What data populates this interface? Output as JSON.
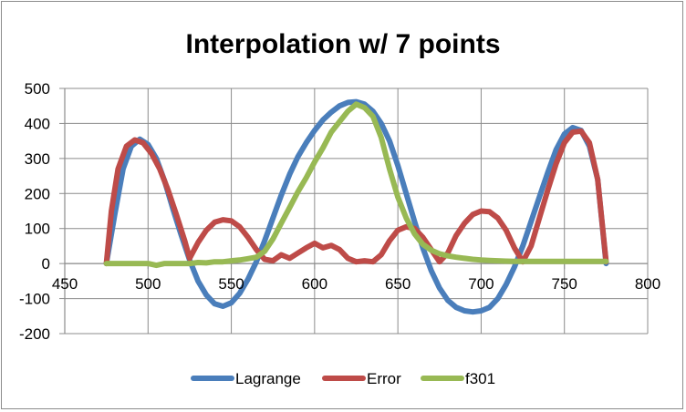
{
  "chart_data": {
    "type": "line",
    "title": "Interpolation w/ 7 points",
    "xlabel": "",
    "ylabel": "",
    "xlim": [
      450,
      800
    ],
    "ylim": [
      -200,
      500
    ],
    "x_ticks": [
      450,
      500,
      550,
      600,
      650,
      700,
      750,
      800
    ],
    "y_ticks": [
      -200,
      -100,
      0,
      100,
      200,
      300,
      400,
      500
    ],
    "grid": true,
    "legend_position": "bottom",
    "series": [
      {
        "name": "Lagrange",
        "color": "#4a7ebb",
        "points": [
          [
            475,
            0
          ],
          [
            480,
            140
          ],
          [
            485,
            270
          ],
          [
            490,
            335
          ],
          [
            495,
            355
          ],
          [
            500,
            340
          ],
          [
            505,
            300
          ],
          [
            510,
            235
          ],
          [
            515,
            155
          ],
          [
            520,
            80
          ],
          [
            525,
            10
          ],
          [
            530,
            -50
          ],
          [
            535,
            -90
          ],
          [
            540,
            -115
          ],
          [
            545,
            -122
          ],
          [
            550,
            -112
          ],
          [
            555,
            -85
          ],
          [
            560,
            -45
          ],
          [
            565,
            5
          ],
          [
            570,
            65
          ],
          [
            575,
            130
          ],
          [
            580,
            195
          ],
          [
            585,
            255
          ],
          [
            590,
            305
          ],
          [
            595,
            345
          ],
          [
            600,
            380
          ],
          [
            605,
            410
          ],
          [
            610,
            432
          ],
          [
            615,
            450
          ],
          [
            620,
            460
          ],
          [
            625,
            462
          ],
          [
            630,
            455
          ],
          [
            635,
            435
          ],
          [
            640,
            400
          ],
          [
            645,
            350
          ],
          [
            650,
            280
          ],
          [
            655,
            200
          ],
          [
            660,
            120
          ],
          [
            665,
            45
          ],
          [
            670,
            -20
          ],
          [
            675,
            -70
          ],
          [
            680,
            -105
          ],
          [
            685,
            -125
          ],
          [
            690,
            -135
          ],
          [
            695,
            -138
          ],
          [
            700,
            -135
          ],
          [
            705,
            -125
          ],
          [
            710,
            -100
          ],
          [
            715,
            -60
          ],
          [
            720,
            -10
          ],
          [
            725,
            50
          ],
          [
            730,
            120
          ],
          [
            735,
            190
          ],
          [
            740,
            260
          ],
          [
            745,
            325
          ],
          [
            750,
            370
          ],
          [
            755,
            388
          ],
          [
            760,
            380
          ],
          [
            765,
            335
          ],
          [
            770,
            240
          ],
          [
            775,
            0
          ]
        ]
      },
      {
        "name": "Error",
        "color": "#be4b48",
        "points": [
          [
            475,
            0
          ],
          [
            478,
            150
          ],
          [
            482,
            270
          ],
          [
            487,
            335
          ],
          [
            492,
            353
          ],
          [
            497,
            345
          ],
          [
            502,
            315
          ],
          [
            507,
            270
          ],
          [
            512,
            210
          ],
          [
            517,
            140
          ],
          [
            522,
            65
          ],
          [
            525,
            15
          ],
          [
            530,
            60
          ],
          [
            535,
            95
          ],
          [
            540,
            118
          ],
          [
            545,
            125
          ],
          [
            550,
            122
          ],
          [
            555,
            105
          ],
          [
            560,
            75
          ],
          [
            565,
            40
          ],
          [
            570,
            12
          ],
          [
            575,
            8
          ],
          [
            580,
            25
          ],
          [
            585,
            15
          ],
          [
            590,
            30
          ],
          [
            595,
            45
          ],
          [
            600,
            58
          ],
          [
            605,
            45
          ],
          [
            610,
            52
          ],
          [
            615,
            40
          ],
          [
            620,
            15
          ],
          [
            625,
            5
          ],
          [
            630,
            8
          ],
          [
            635,
            5
          ],
          [
            640,
            25
          ],
          [
            645,
            65
          ],
          [
            650,
            95
          ],
          [
            655,
            105
          ],
          [
            660,
            100
          ],
          [
            665,
            75
          ],
          [
            670,
            40
          ],
          [
            675,
            5
          ],
          [
            680,
            30
          ],
          [
            685,
            80
          ],
          [
            690,
            115
          ],
          [
            695,
            140
          ],
          [
            700,
            150
          ],
          [
            705,
            148
          ],
          [
            710,
            130
          ],
          [
            715,
            95
          ],
          [
            720,
            45
          ],
          [
            725,
            5
          ],
          [
            730,
            50
          ],
          [
            735,
            130
          ],
          [
            740,
            210
          ],
          [
            745,
            285
          ],
          [
            750,
            345
          ],
          [
            755,
            375
          ],
          [
            760,
            378
          ],
          [
            765,
            345
          ],
          [
            770,
            240
          ],
          [
            775,
            5
          ]
        ]
      },
      {
        "name": "f301",
        "color": "#98b954",
        "points": [
          [
            475,
            0
          ],
          [
            480,
            0
          ],
          [
            485,
            0
          ],
          [
            490,
            0
          ],
          [
            495,
            0
          ],
          [
            500,
            0
          ],
          [
            505,
            -5
          ],
          [
            510,
            0
          ],
          [
            515,
            0
          ],
          [
            520,
            0
          ],
          [
            525,
            0
          ],
          [
            530,
            3
          ],
          [
            535,
            2
          ],
          [
            540,
            5
          ],
          [
            545,
            5
          ],
          [
            550,
            8
          ],
          [
            555,
            10
          ],
          [
            560,
            14
          ],
          [
            565,
            18
          ],
          [
            570,
            35
          ],
          [
            575,
            70
          ],
          [
            580,
            115
          ],
          [
            585,
            160
          ],
          [
            590,
            205
          ],
          [
            595,
            245
          ],
          [
            600,
            290
          ],
          [
            605,
            330
          ],
          [
            610,
            375
          ],
          [
            615,
            405
          ],
          [
            620,
            435
          ],
          [
            625,
            455
          ],
          [
            630,
            445
          ],
          [
            635,
            420
          ],
          [
            640,
            360
          ],
          [
            645,
            270
          ],
          [
            650,
            190
          ],
          [
            655,
            130
          ],
          [
            660,
            85
          ],
          [
            665,
            55
          ],
          [
            670,
            38
          ],
          [
            675,
            28
          ],
          [
            680,
            22
          ],
          [
            685,
            18
          ],
          [
            690,
            15
          ],
          [
            695,
            12
          ],
          [
            700,
            10
          ],
          [
            705,
            9
          ],
          [
            710,
            8
          ],
          [
            715,
            7
          ],
          [
            720,
            6
          ],
          [
            725,
            6
          ],
          [
            730,
            6
          ],
          [
            735,
            6
          ],
          [
            740,
            6
          ],
          [
            745,
            6
          ],
          [
            750,
            6
          ],
          [
            755,
            6
          ],
          [
            760,
            6
          ],
          [
            765,
            6
          ],
          [
            770,
            6
          ],
          [
            775,
            6
          ]
        ]
      }
    ]
  }
}
